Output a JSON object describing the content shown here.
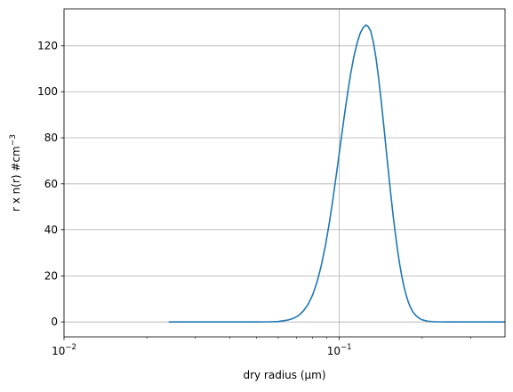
{
  "chart_data": {
    "type": "line",
    "title": "",
    "xlabel": "dry radius (μm)",
    "ylabel": "r x n(r) #cm",
    "ylabel_superscript": "−3",
    "x_scale": "log",
    "xlim": [
      0.01,
      0.4
    ],
    "ylim": [
      -6.5,
      136
    ],
    "x_ticks": [
      {
        "value": 0.01,
        "base": "10",
        "exp": "−2"
      },
      {
        "value": 0.1,
        "base": "10",
        "exp": "−1"
      }
    ],
    "y_ticks": [
      0,
      20,
      40,
      60,
      80,
      100,
      120
    ],
    "grid": true,
    "series": [
      {
        "color": "#1f77b4",
        "x": [
          0.024,
          0.03,
          0.04,
          0.05,
          0.055,
          0.06,
          0.065,
          0.068,
          0.071,
          0.074,
          0.077,
          0.08,
          0.083,
          0.086,
          0.089,
          0.092,
          0.095,
          0.098,
          0.101,
          0.104,
          0.107,
          0.11,
          0.113,
          0.116,
          0.119,
          0.122,
          0.125,
          0.127,
          0.13,
          0.133,
          0.136,
          0.139,
          0.142,
          0.145,
          0.148,
          0.151,
          0.154,
          0.157,
          0.16,
          0.163,
          0.166,
          0.169,
          0.172,
          0.175,
          0.178,
          0.181,
          0.185,
          0.19,
          0.195,
          0.2,
          0.21,
          0.22,
          0.23,
          0.25,
          0.3,
          0.4
        ],
        "y": [
          0,
          0,
          0,
          0,
          0.02,
          0.2,
          0.8,
          1.5,
          2.7,
          4.7,
          7.6,
          11.7,
          17.3,
          24.4,
          33,
          43,
          54,
          65.6,
          77.2,
          88.4,
          98.7,
          107.8,
          115.3,
          121,
          125.3,
          127.8,
          129,
          128.5,
          126.5,
          121.5,
          114.5,
          105.8,
          96,
          85.6,
          75,
          64.8,
          55,
          46,
          38,
          30.8,
          24.6,
          19.4,
          15.1,
          11.6,
          8.8,
          6.6,
          4.4,
          2.7,
          1.6,
          0.9,
          0.3,
          0.08,
          0.02,
          0,
          0,
          0
        ]
      }
    ]
  }
}
